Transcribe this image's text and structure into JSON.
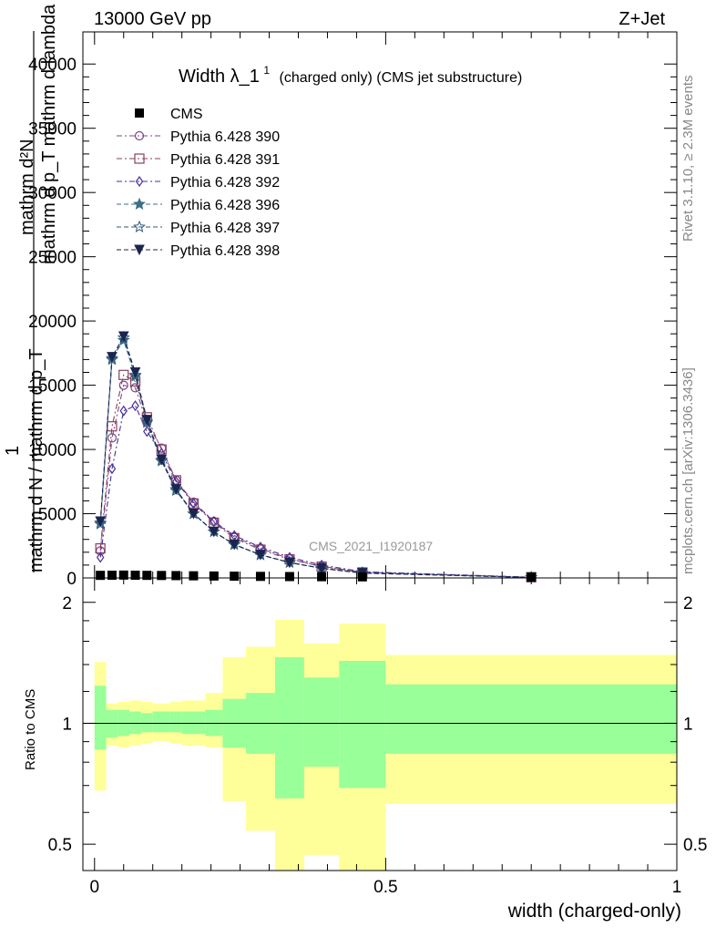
{
  "header": {
    "left": "13000 GeV pp",
    "right": "Z+Jet"
  },
  "side_labels": {
    "rivet": "Rivet 3.1.10, ≥ 2.3M events",
    "mcplots": "mcplots.cern.ch [arXiv:1306.3436]"
  },
  "chart_data": [
    {
      "type": "line",
      "title_main": "Width λ_1",
      "title_sup": "1",
      "title_rest": "(charged only) (CMS jet substructure)",
      "ylabel_top": "mathrm d²N",
      "ylabel_top_line2": "mathrm d p_T mathrm d lambda",
      "ylabel_frac_num": "1",
      "ylabel_frac_den": "mathrm d N / mathrm d p_T",
      "xlim": [
        -0.02,
        1.0
      ],
      "ylim": [
        0,
        42500
      ],
      "yticks": [
        0,
        5000,
        10000,
        15000,
        20000,
        25000,
        30000,
        35000,
        40000
      ],
      "ytick_labels": [
        "0",
        "5000",
        "10000",
        "15000",
        "20000",
        "25000",
        "30000",
        "35000",
        "40000"
      ],
      "watermark": "CMS_2021_I1920187",
      "legend_position": "top-left",
      "cms_points": {
        "name": "CMS",
        "x": [
          0.01,
          0.03,
          0.05,
          0.07,
          0.09,
          0.115,
          0.14,
          0.17,
          0.205,
          0.24,
          0.285,
          0.335,
          0.39,
          0.46,
          0.75
        ],
        "y": [
          130,
          140,
          150,
          140,
          130,
          120,
          110,
          95,
          80,
          65,
          50,
          35,
          25,
          15,
          3
        ]
      },
      "series": [
        {
          "name": "Pythia 6.428 390",
          "color": "#7a4a86",
          "marker": "circle",
          "x": [
            0.01,
            0.03,
            0.05,
            0.07,
            0.09,
            0.115,
            0.14,
            0.17,
            0.205,
            0.24,
            0.285,
            0.335,
            0.39,
            0.46,
            0.75
          ],
          "y": [
            2100,
            10900,
            15000,
            14800,
            12100,
            10100,
            7600,
            5900,
            4400,
            3200,
            2300,
            1500,
            900,
            450,
            50
          ]
        },
        {
          "name": "Pythia 6.428 391",
          "color": "#8a3f5c",
          "marker": "square",
          "x": [
            0.01,
            0.03,
            0.05,
            0.07,
            0.09,
            0.115,
            0.14,
            0.17,
            0.205,
            0.24,
            0.285,
            0.335,
            0.39,
            0.46,
            0.75
          ],
          "y": [
            2300,
            11800,
            15800,
            15300,
            12500,
            10000,
            7600,
            5800,
            4300,
            3100,
            2200,
            1450,
            880,
            430,
            50
          ]
        },
        {
          "name": "Pythia 6.428 392",
          "color": "#4b2e9b",
          "marker": "diamond",
          "x": [
            0.01,
            0.03,
            0.05,
            0.07,
            0.09,
            0.115,
            0.14,
            0.17,
            0.205,
            0.24,
            0.285,
            0.335,
            0.39,
            0.46,
            0.75
          ],
          "y": [
            1600,
            8500,
            13000,
            13400,
            11400,
            9700,
            7500,
            5800,
            4400,
            3300,
            2400,
            1600,
            1000,
            480,
            55
          ]
        },
        {
          "name": "Pythia 6.428 396",
          "color": "#3d6f86",
          "marker": "star",
          "x": [
            0.01,
            0.03,
            0.05,
            0.07,
            0.09,
            0.115,
            0.14,
            0.17,
            0.205,
            0.24,
            0.285,
            0.335,
            0.39,
            0.46,
            0.75
          ],
          "y": [
            4300,
            17100,
            18500,
            15700,
            12200,
            9200,
            6900,
            5000,
            3600,
            2600,
            1800,
            1200,
            750,
            380,
            45
          ]
        },
        {
          "name": "Pythia 6.428 397",
          "color": "#2f5a7a",
          "marker": "star-open",
          "x": [
            0.01,
            0.03,
            0.05,
            0.07,
            0.09,
            0.115,
            0.14,
            0.17,
            0.205,
            0.24,
            0.285,
            0.335,
            0.39,
            0.46,
            0.75
          ],
          "y": [
            4200,
            17000,
            18700,
            15800,
            12100,
            9100,
            6800,
            5000,
            3600,
            2600,
            1800,
            1200,
            740,
            370,
            45
          ]
        },
        {
          "name": "Pythia 6.428 398",
          "color": "#1b2550",
          "marker": "triangle-down",
          "x": [
            0.01,
            0.03,
            0.05,
            0.07,
            0.09,
            0.115,
            0.14,
            0.17,
            0.205,
            0.24,
            0.285,
            0.335,
            0.39,
            0.46,
            0.75
          ],
          "y": [
            4400,
            17200,
            18800,
            16000,
            12300,
            9200,
            6900,
            5000,
            3600,
            2600,
            1800,
            1200,
            750,
            380,
            45
          ]
        }
      ]
    },
    {
      "type": "area",
      "ylabel": "Ratio to CMS",
      "xlabel": "width (charged-only)",
      "xlim": [
        -0.02,
        1.0
      ],
      "ylim": [
        0.43,
        2.3
      ],
      "log_y": true,
      "xticks": [
        0,
        0.5,
        1
      ],
      "xtick_labels": [
        "0",
        "0.5",
        "1"
      ],
      "yticks": [
        0.5,
        1,
        2
      ],
      "ytick_labels": [
        "0.5",
        "1",
        "2"
      ],
      "reference_line": 1,
      "band_colors": {
        "inner": "#99ff99",
        "outer": "#ffff99"
      },
      "bins": [
        {
          "lo": 0.0,
          "hi": 0.02,
          "stat_lo": 0.86,
          "stat_hi": 1.24,
          "tot_lo": 0.68,
          "tot_hi": 1.42
        },
        {
          "lo": 0.02,
          "hi": 0.04,
          "stat_lo": 0.92,
          "stat_hi": 1.08,
          "tot_lo": 0.88,
          "tot_hi": 1.12
        },
        {
          "lo": 0.04,
          "hi": 0.06,
          "stat_lo": 0.93,
          "stat_hi": 1.08,
          "tot_lo": 0.87,
          "tot_hi": 1.13
        },
        {
          "lo": 0.06,
          "hi": 0.08,
          "stat_lo": 0.94,
          "stat_hi": 1.07,
          "tot_lo": 0.88,
          "tot_hi": 1.14
        },
        {
          "lo": 0.08,
          "hi": 0.1,
          "stat_lo": 0.95,
          "stat_hi": 1.06,
          "tot_lo": 0.89,
          "tot_hi": 1.13
        },
        {
          "lo": 0.1,
          "hi": 0.13,
          "stat_lo": 0.95,
          "stat_hi": 1.07,
          "tot_lo": 0.9,
          "tot_hi": 1.12
        },
        {
          "lo": 0.13,
          "hi": 0.15,
          "stat_lo": 0.95,
          "stat_hi": 1.07,
          "tot_lo": 0.89,
          "tot_hi": 1.13
        },
        {
          "lo": 0.15,
          "hi": 0.19,
          "stat_lo": 0.94,
          "stat_hi": 1.07,
          "tot_lo": 0.88,
          "tot_hi": 1.14
        },
        {
          "lo": 0.19,
          "hi": 0.22,
          "stat_lo": 0.93,
          "stat_hi": 1.08,
          "tot_lo": 0.87,
          "tot_hi": 1.19
        },
        {
          "lo": 0.22,
          "hi": 0.26,
          "stat_lo": 0.87,
          "stat_hi": 1.15,
          "tot_lo": 0.64,
          "tot_hi": 1.46
        },
        {
          "lo": 0.26,
          "hi": 0.31,
          "stat_lo": 0.84,
          "stat_hi": 1.19,
          "tot_lo": 0.54,
          "tot_hi": 1.55
        },
        {
          "lo": 0.31,
          "hi": 0.36,
          "stat_lo": 0.65,
          "stat_hi": 1.46,
          "tot_lo": 0.43,
          "tot_hi": 1.81
        },
        {
          "lo": 0.36,
          "hi": 0.42,
          "stat_lo": 0.78,
          "stat_hi": 1.3,
          "tot_lo": 0.47,
          "tot_hi": 1.58
        },
        {
          "lo": 0.42,
          "hi": 0.5,
          "stat_lo": 0.69,
          "stat_hi": 1.43,
          "tot_lo": 0.43,
          "tot_hi": 1.77
        },
        {
          "lo": 0.5,
          "hi": 1.0,
          "stat_lo": 0.84,
          "stat_hi": 1.25,
          "tot_lo": 0.63,
          "tot_hi": 1.48
        }
      ]
    }
  ]
}
